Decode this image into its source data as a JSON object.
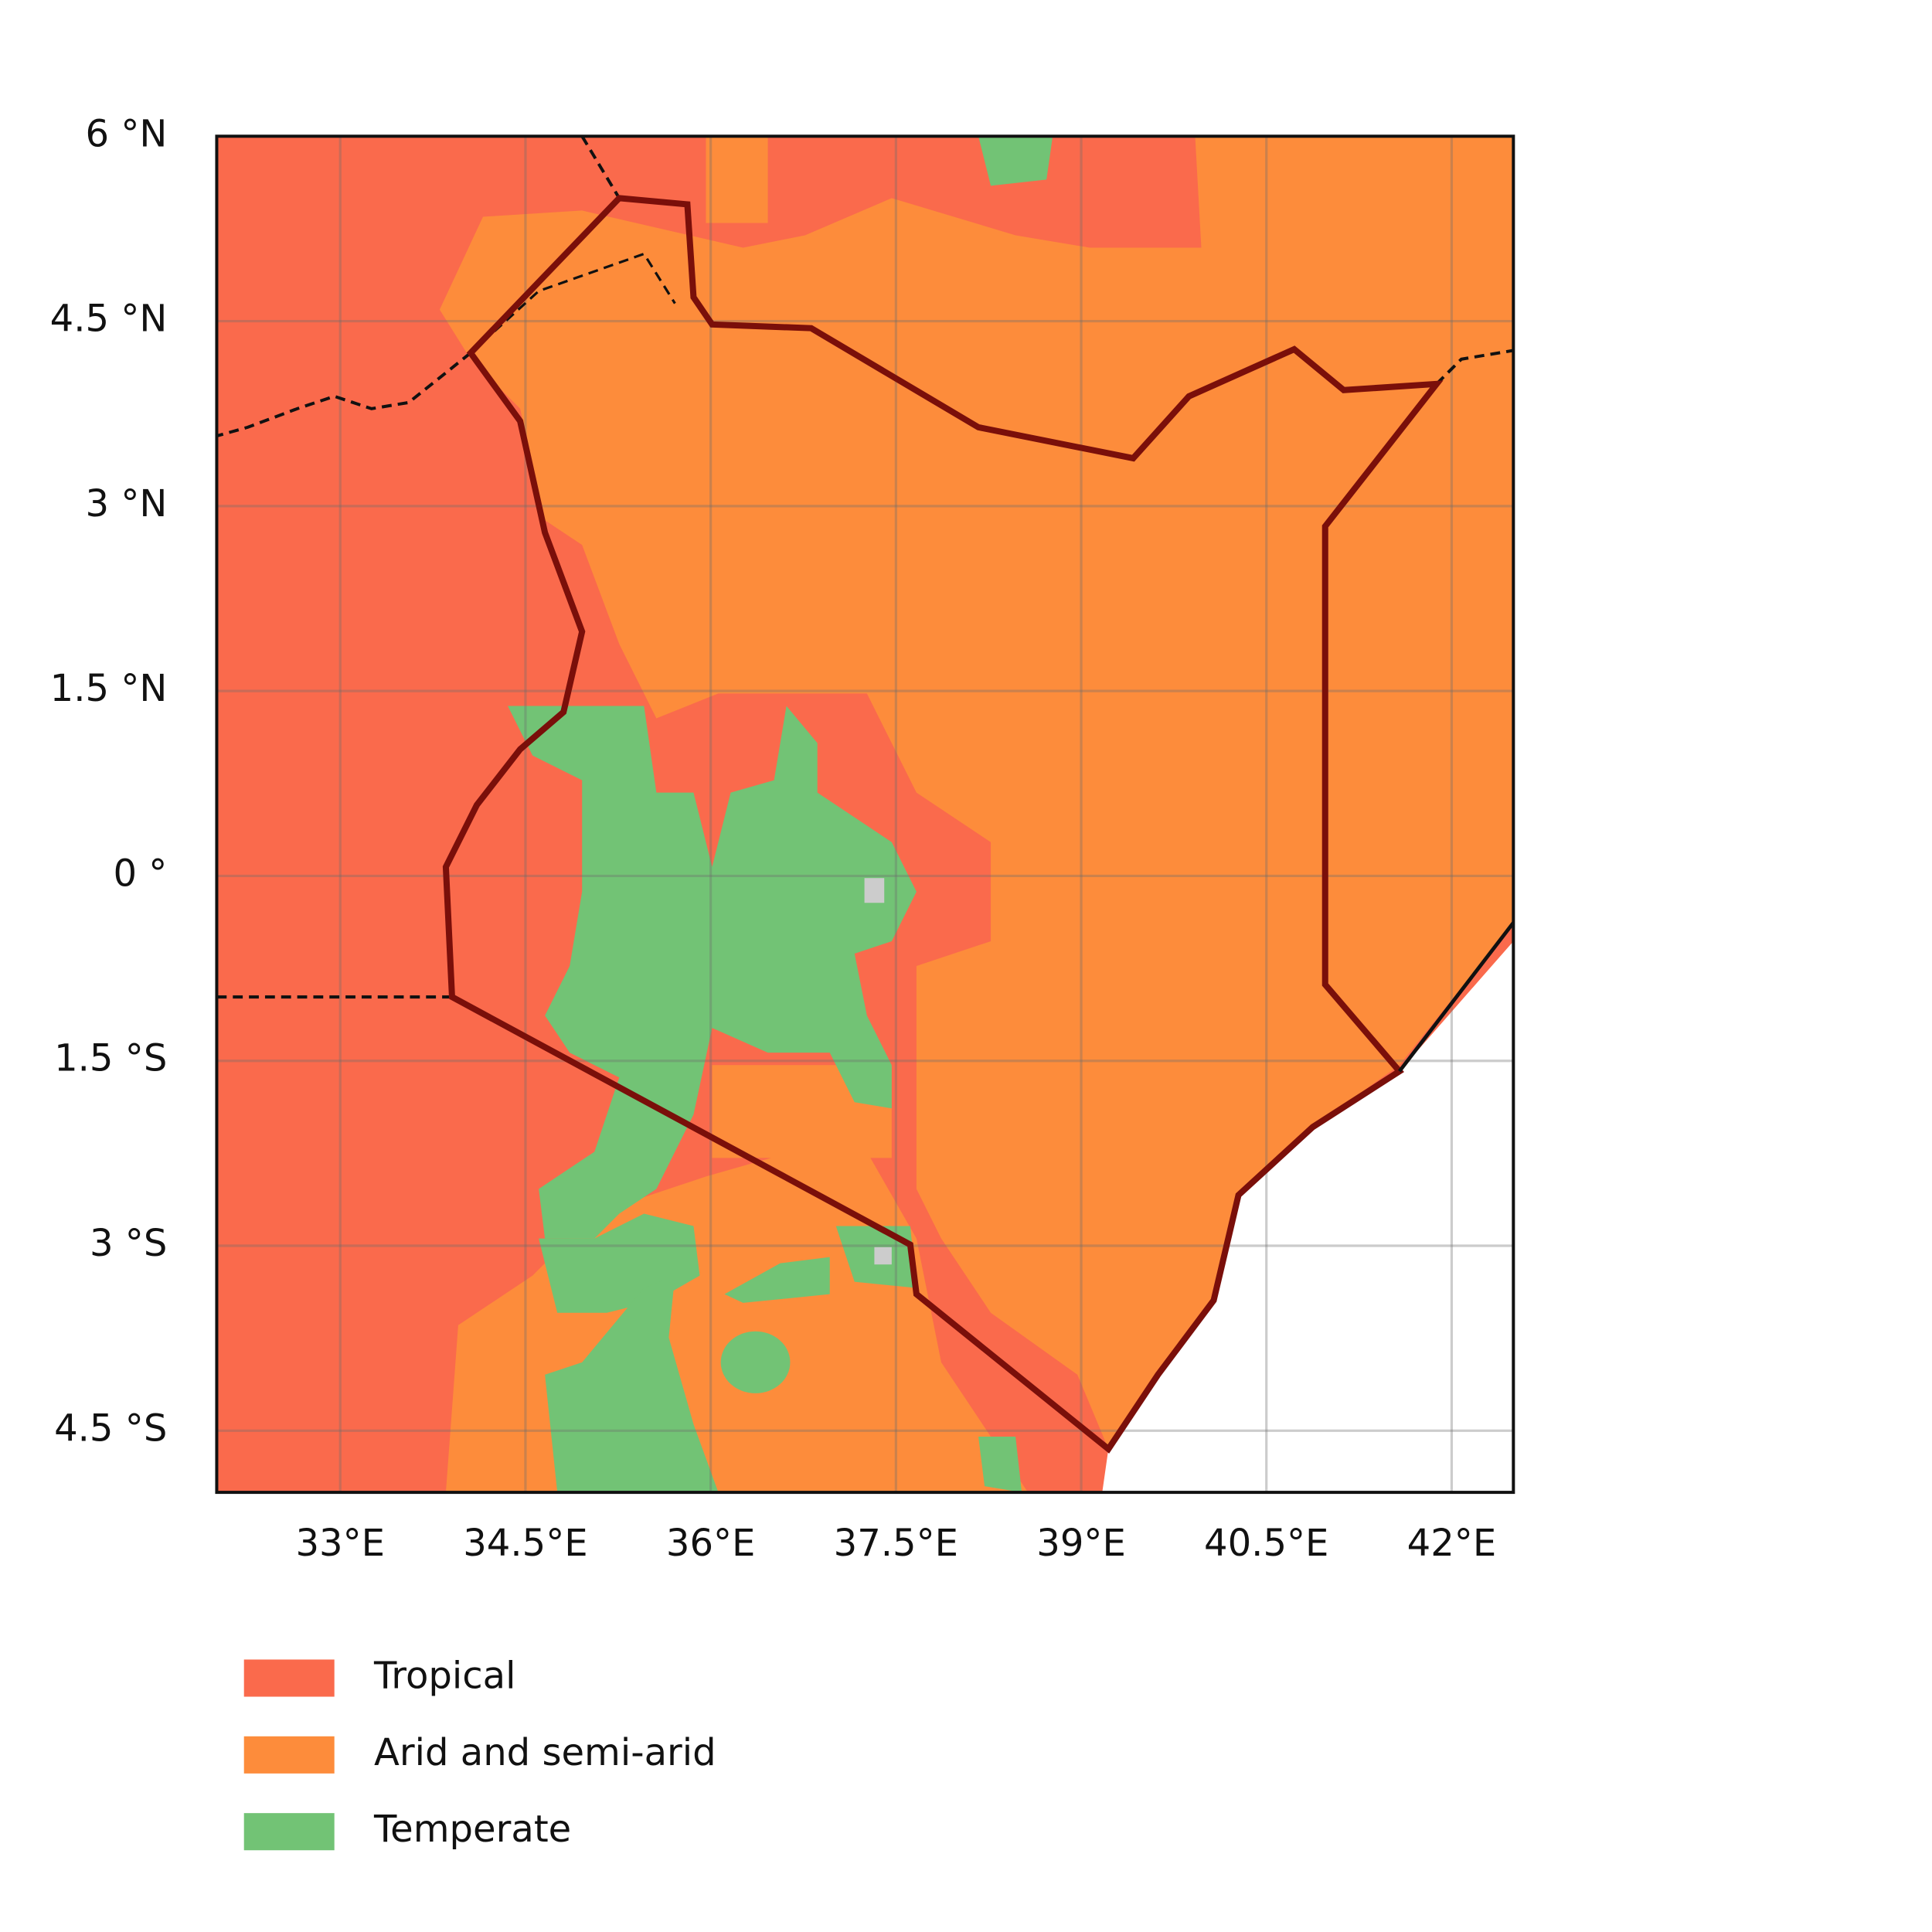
{
  "chart_data": {
    "type": "map",
    "xlim": [
      32,
      42.5
    ],
    "ylim": [
      -5,
      6
    ],
    "xticks": [
      {
        "value": 33,
        "label": "33°E"
      },
      {
        "value": 34.5,
        "label": "34.5°E"
      },
      {
        "value": 36,
        "label": "36°E"
      },
      {
        "value": 37.5,
        "label": "37.5°E"
      },
      {
        "value": 39,
        "label": "39°E"
      },
      {
        "value": 40.5,
        "label": "40.5°E"
      },
      {
        "value": 42,
        "label": "42°E"
      }
    ],
    "yticks": [
      {
        "value": 6,
        "label": "6 °N"
      },
      {
        "value": 4.5,
        "label": "4.5 °N"
      },
      {
        "value": 3,
        "label": "3 °N"
      },
      {
        "value": 1.5,
        "label": "1.5 °N"
      },
      {
        "value": 0,
        "label": "0 °"
      },
      {
        "value": -1.5,
        "label": "1.5 °S"
      },
      {
        "value": -3,
        "label": "3 °S"
      },
      {
        "value": -4.5,
        "label": "4.5 °S"
      }
    ],
    "grid": true,
    "legend": [
      {
        "label": "Tropical",
        "color": "#fa6a4c"
      },
      {
        "label": "Arid and semi-arid",
        "color": "#fd8c3b"
      },
      {
        "label": "Temperate",
        "color": "#72c375"
      }
    ]
  }
}
